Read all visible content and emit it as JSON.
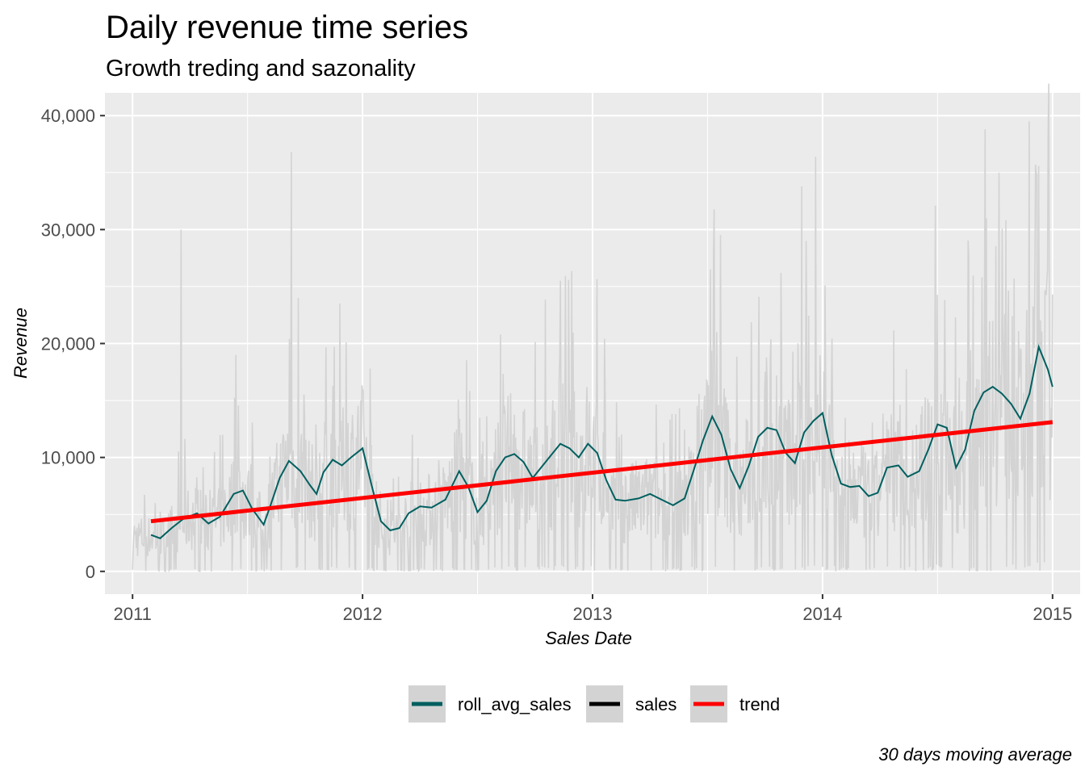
{
  "chart_data": {
    "type": "line",
    "title": "Daily revenue time series",
    "subtitle": "Growth treding and sazonality",
    "xlabel": "Sales Date",
    "ylabel": "Revenue",
    "caption": "30 days moving average",
    "xlim": [
      2010.88,
      2015.12
    ],
    "ylim": [
      -2000,
      42000
    ],
    "x_ticks": [
      2011,
      2012,
      2013,
      2014,
      2015
    ],
    "x_tick_labels": [
      "2011",
      "2012",
      "2013",
      "2014",
      "2015"
    ],
    "y_ticks": [
      0,
      10000,
      20000,
      30000,
      40000
    ],
    "y_tick_labels": [
      "0",
      "10,000",
      "20,000",
      "30,000",
      "40,000"
    ],
    "grid": true,
    "legend": {
      "position": "bottom",
      "entries": [
        {
          "label": "roll_avg_sales",
          "color": "#005f5f"
        },
        {
          "label": "sales",
          "color": "#000000"
        },
        {
          "label": "trend",
          "color": "#ff0000"
        }
      ]
    },
    "series": [
      {
        "name": "sales",
        "color": "#d3d3d3",
        "style": "daily",
        "x_range": [
          2011.0,
          2015.0
        ],
        "samples_per_year": 365,
        "seed": 7,
        "spikes": [
          {
            "x": 2011.21,
            "y": 30000
          },
          {
            "x": 2011.69,
            "y": 36800
          },
          {
            "x": 2011.72,
            "y": 24000
          },
          {
            "x": 2011.45,
            "y": 19000
          },
          {
            "x": 2012.86,
            "y": 25500
          },
          {
            "x": 2012.6,
            "y": 20800
          },
          {
            "x": 2013.54,
            "y": 21000
          },
          {
            "x": 2013.82,
            "y": 26200
          },
          {
            "x": 2013.91,
            "y": 33800
          },
          {
            "x": 2013.93,
            "y": 29000
          },
          {
            "x": 2013.97,
            "y": 36400
          },
          {
            "x": 2014.49,
            "y": 32100
          },
          {
            "x": 2014.78,
            "y": 30100
          },
          {
            "x": 2014.9,
            "y": 39500
          },
          {
            "x": 2014.93,
            "y": 35000
          }
        ]
      },
      {
        "name": "roll_avg_sales",
        "color": "#005f5f",
        "x": [
          2011.08,
          2011.12,
          2011.17,
          2011.22,
          2011.28,
          2011.33,
          2011.38,
          2011.44,
          2011.48,
          2011.52,
          2011.57,
          2011.6,
          2011.64,
          2011.68,
          2011.73,
          2011.77,
          2011.8,
          2011.83,
          2011.87,
          2011.91,
          2011.95,
          2012.0,
          2012.04,
          2012.08,
          2012.12,
          2012.16,
          2012.2,
          2012.25,
          2012.3,
          2012.36,
          2012.42,
          2012.46,
          2012.5,
          2012.54,
          2012.58,
          2012.62,
          2012.66,
          2012.7,
          2012.74,
          2012.78,
          2012.82,
          2012.86,
          2012.9,
          2012.94,
          2012.98,
          2013.02,
          2013.06,
          2013.1,
          2013.14,
          2013.2,
          2013.25,
          2013.3,
          2013.35,
          2013.4,
          2013.44,
          2013.48,
          2013.52,
          2013.56,
          2013.6,
          2013.64,
          2013.68,
          2013.72,
          2013.76,
          2013.8,
          2013.84,
          2013.88,
          2013.92,
          2013.96,
          2014.0,
          2014.04,
          2014.08,
          2014.12,
          2014.16,
          2014.2,
          2014.24,
          2014.28,
          2014.33,
          2014.37,
          2014.42,
          2014.46,
          2014.5,
          2014.54,
          2014.58,
          2014.62,
          2014.66,
          2014.7,
          2014.74,
          2014.78,
          2014.82,
          2014.86,
          2014.9,
          2014.94,
          2014.98,
          2015.0
        ],
        "values": [
          3200,
          2900,
          3800,
          4600,
          5100,
          4200,
          4800,
          6800,
          7100,
          5500,
          4100,
          5800,
          8200,
          9700,
          8800,
          7600,
          6800,
          8700,
          9800,
          9300,
          10000,
          10800,
          7500,
          4400,
          3600,
          3800,
          5100,
          5700,
          5600,
          6300,
          8800,
          7400,
          5200,
          6200,
          8800,
          10000,
          10300,
          9600,
          8200,
          9200,
          10200,
          11200,
          10800,
          10000,
          11200,
          10400,
          8000,
          6300,
          6200,
          6400,
          6800,
          6300,
          5800,
          6400,
          8900,
          11500,
          13600,
          12000,
          9000,
          7300,
          9300,
          11800,
          12600,
          12400,
          10400,
          9500,
          12200,
          13200,
          13900,
          10200,
          7700,
          7400,
          7500,
          6600,
          6900,
          9100,
          9300,
          8300,
          8800,
          10700,
          12900,
          12600,
          9100,
          10700,
          14100,
          15700,
          16200,
          15600,
          14700,
          13400,
          15600,
          19700,
          17700,
          16200
        ]
      },
      {
        "name": "trend",
        "color": "#ff0000",
        "x": [
          2011.08,
          2015.0
        ],
        "values": [
          4400,
          13100
        ]
      }
    ]
  }
}
